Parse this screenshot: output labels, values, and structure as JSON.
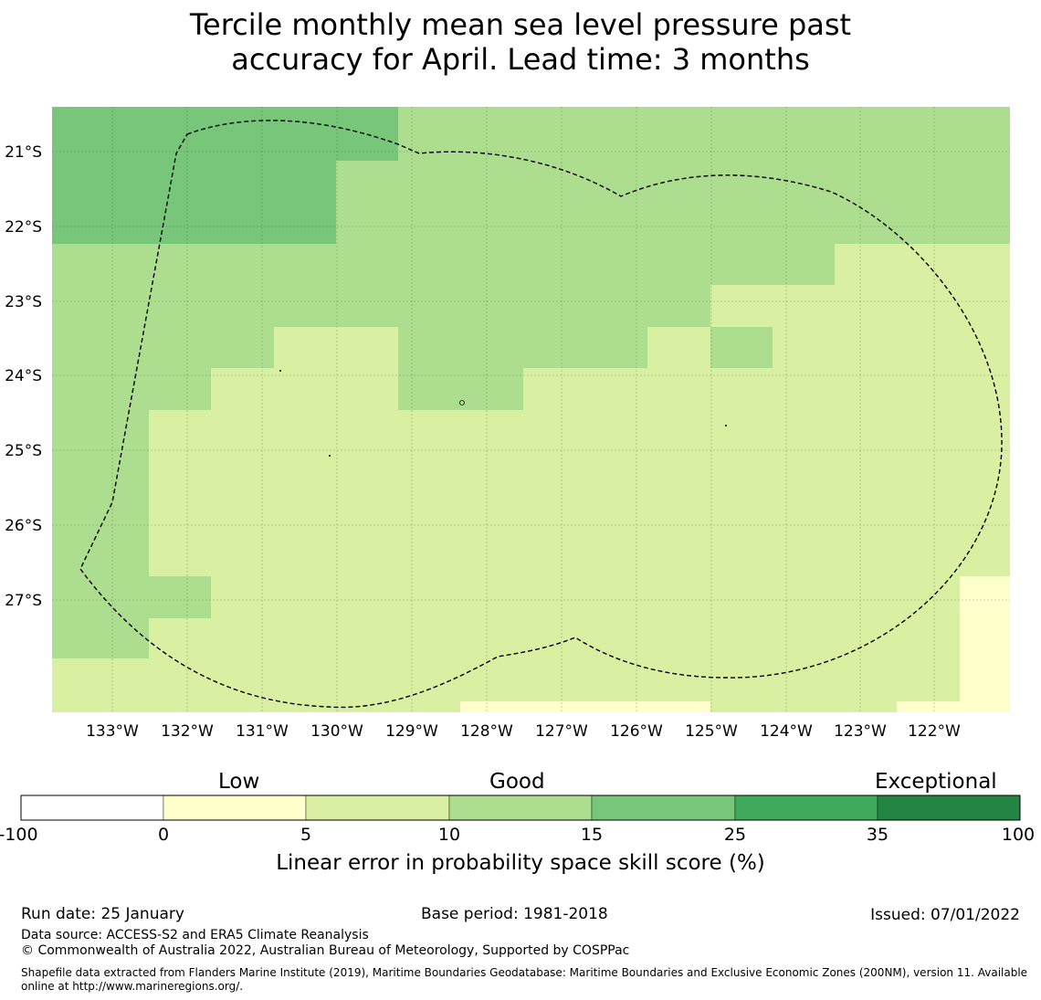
{
  "title_line1": "Tercile monthly mean sea level pressure past",
  "title_line2": "accuracy for April. Lead time: 3 months",
  "map": {
    "lon_labels": [
      "133°W",
      "132°W",
      "131°W",
      "130°W",
      "129°W",
      "128°W",
      "127°W",
      "126°W",
      "125°W",
      "124°W",
      "123°W",
      "122°W"
    ],
    "lat_labels": [
      "21°S",
      "22°S",
      "23°S",
      "24°S",
      "25°S",
      "26°S",
      "27°S"
    ],
    "colors": [
      "#ffffff",
      "#ffffcc",
      "#d9f0a3",
      "#addd8e",
      "#78c679",
      "#41ab5d",
      "#238443"
    ]
  },
  "colorbar": {
    "category_low": "Low",
    "category_good": "Good",
    "category_exceptional": "Exceptional",
    "ticks": [
      "-100",
      "0",
      "5",
      "10",
      "15",
      "25",
      "35",
      "100"
    ],
    "title": "Linear error in probability space skill score (%)"
  },
  "footer": {
    "run_date": "Run date: 25 January",
    "base_period": "Base period: 1981-2018",
    "issued": "Issued: 07/01/2022",
    "data_source": "Data source: ACCESS-S2 and ERA5 Climate Reanalysis",
    "copyright": "© Commonwealth of Australia 2022, Australian Bureau of Meteorology, Supported by COSPPac",
    "shapefile": "Shapefile data extracted from Flanders Marine Institute (2019), Maritime Boundaries Geodatabase: Maritime Boundaries and Exclusive Economic Zones (200NM), version 11. Available online at http://www.marineregions.org/."
  }
}
